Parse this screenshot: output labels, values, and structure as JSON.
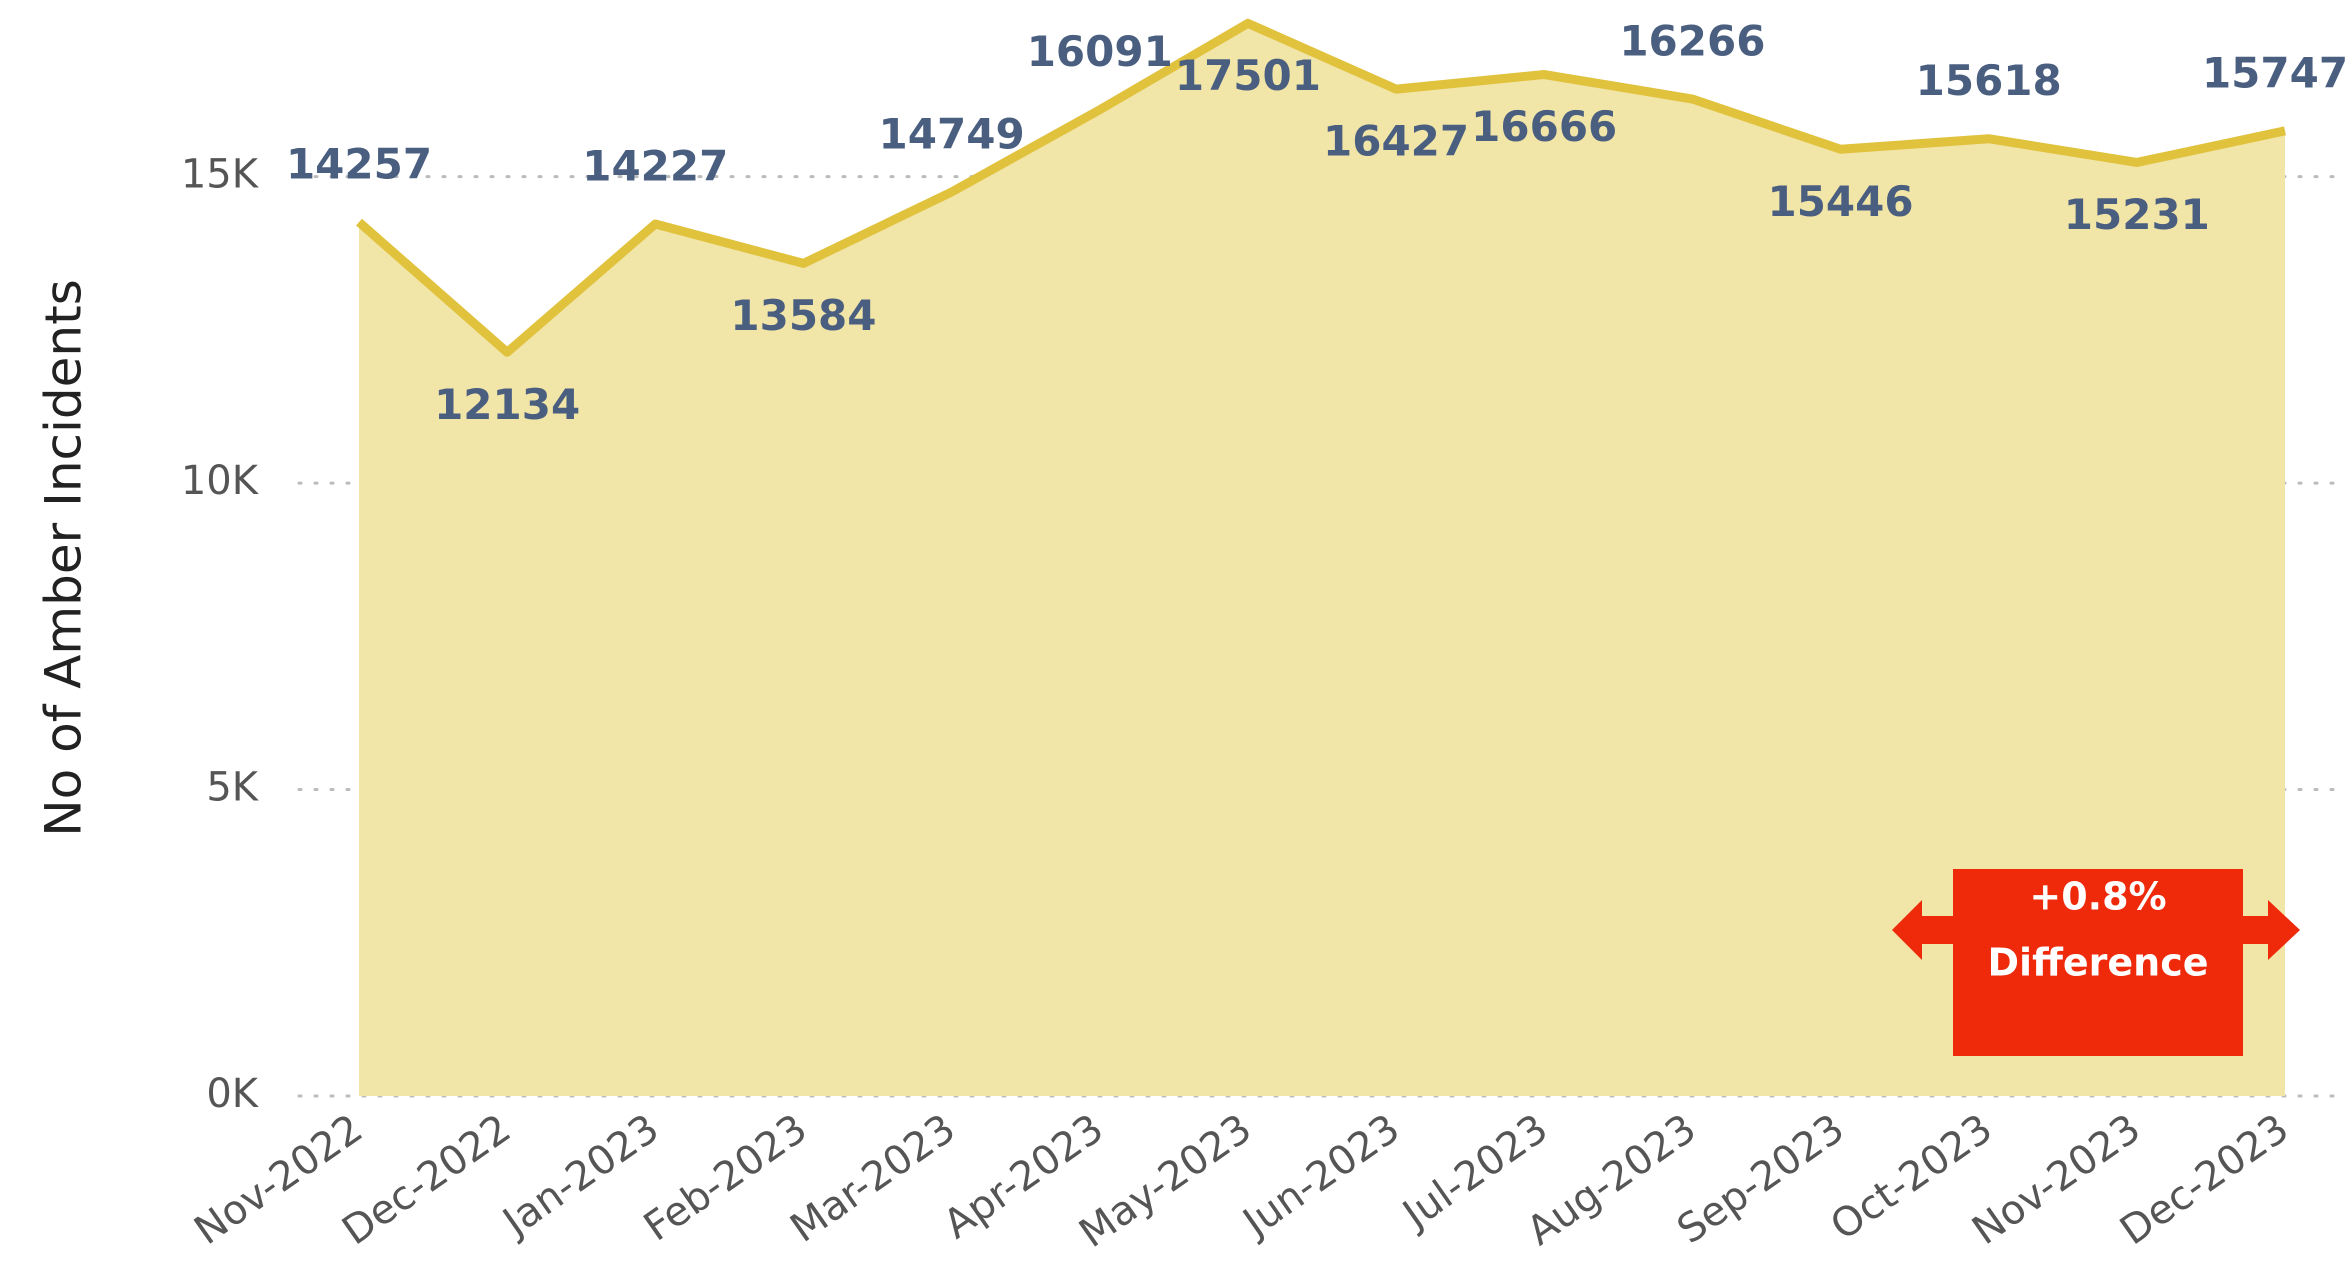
{
  "chart_data": {
    "type": "area",
    "y_axis_label": "No of Amber Incidents",
    "categories": [
      "Nov-2022",
      "Dec-2022",
      "Jan-2023",
      "Feb-2023",
      "Mar-2023",
      "Apr-2023",
      "May-2023",
      "Jun-2023",
      "Jul-2023",
      "Aug-2023",
      "Sep-2023",
      "Oct-2023",
      "Nov-2023",
      "Dec-2023"
    ],
    "values": [
      14257,
      12134,
      14227,
      13584,
      14749,
      16091,
      17501,
      16427,
      16666,
      16266,
      15446,
      15618,
      15231,
      15747
    ],
    "line_color": "#e0c23c",
    "fill_color": "#f2e5a8",
    "ylim": [
      0,
      17800
    ],
    "yticks": [
      {
        "value": 0,
        "label": "0K"
      },
      {
        "value": 5000,
        "label": "5K"
      },
      {
        "value": 10000,
        "label": "10K"
      },
      {
        "value": 15000,
        "label": "15K"
      }
    ],
    "grid": true,
    "annotation": {
      "lines": [
        "+0.8%",
        "Difference"
      ],
      "color": "#ee2a0b"
    }
  }
}
